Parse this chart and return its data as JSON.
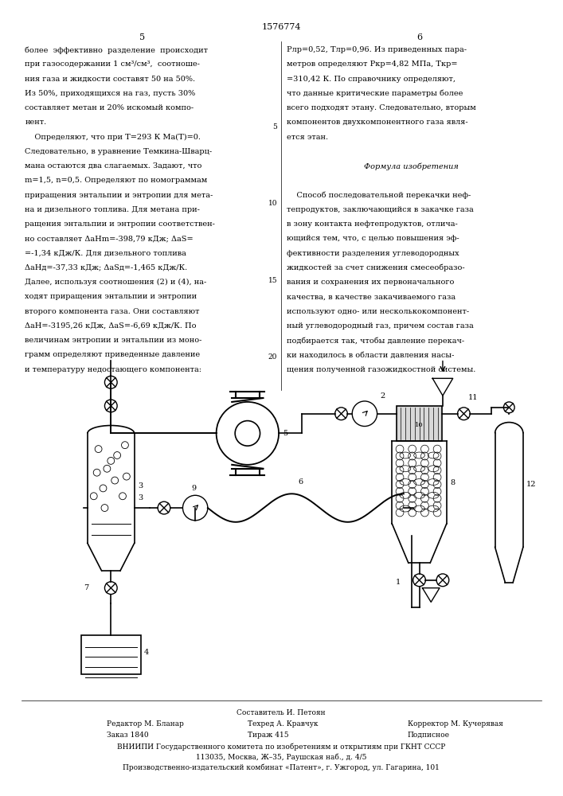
{
  "patent_number": "1576774",
  "page_num_left": "5",
  "page_num_right": "6",
  "line_number_5": "5",
  "line_number_10": "10",
  "line_number_15": "15",
  "line_number_20": "20",
  "col1_lines": [
    "более  эффективно  разделение  происходит",
    "при газосодержании 1 см³/см³,  соотноше-",
    "ния газа и жидкости составят 50 на 50%.",
    "Из 50%, приходящихся на газ, пусть 30%",
    "составляет метан и 20% искомый компо-",
    "нент.",
    "    Определяют, что при T=293 К Mа(T)=0.",
    "Следовательно, в уравнение Темкина-Шварц-",
    "мана остаются два слагаемых. Задают, что",
    "m=1,5, n=0,5. Определяют по номограммам",
    "приращения энтальпии и энтропии для мета-",
    "на и дизельного топлива. Для метана при-",
    "ращения энтальпии и энтропии соответствен-",
    "но составляет ΔаHm=-398,79 кДж; ΔаS=",
    "=-1,34 кДж/К. Для дизельного топлива",
    "ΔаHд=-37,33 кДж; ΔаSд=-1,465 кДж/К.",
    "Далее, используя соотношения (2) и (4), на-",
    "ходят приращения энтальпии и энтропии",
    "второго компонента газа. Они составляют",
    "ΔаH=-3195,26 кДж, ΔаS=-6,69 кДж/К. По",
    "величинам энтропии и энтальпии из моно-",
    "грамм определяют приведенные давление",
    "и температуру недостающего компонента:"
  ],
  "col2_lines": [
    "Pлр=0,52, Tлр=0,96. Из приведенных пара-",
    "метров определяют Pкр=4,82 МПа, Tкр=",
    "=310,42 К. По справочнику определяют,",
    "что данные критические параметры более",
    "всего подходят этану. Следовательно, вторым",
    "компонентов двухкомпонентного газа явля-",
    "ется этан.",
    "",
    "Формула изобретения",
    "",
    "    Способ последовательной перекачки неф-",
    "тепродуктов, заключающийся в закачке газа",
    "в зону контакта нефтепродуктов, отлича-",
    "ющийся тем, что, с целью повышения эф-",
    "фективности разделения углеводородных",
    "жидкостей за счет снижения смесеобразо-",
    "вания и сохранения их первоначального",
    "качества, в качестве закачиваемого газа",
    "используют одно- или несколькокомпонент-",
    "ный углеводородный газ, причем состав газа",
    "подбирается так, чтобы давление перекач-",
    "ки находилось в области давления насы-",
    "щения полученной газожидкостной системы."
  ],
  "footer_composer": "Составитель И. Петоян",
  "footer_editor": "Редактор М. Бланар",
  "footer_techred": "Техред А. Кравчук",
  "footer_corrector": "Корректор М. Кучерявая",
  "footer_order": "Заказ 1840",
  "footer_tirazh": "Тираж 415",
  "footer_podpisnoe": "Подписное",
  "footer_vniiipi": "ВНИИПИ Государственного комитета по изобретениям и открытиям при ГКНТ СССР",
  "footer_address": "113035, Москва, Ж–35, Раушская наб., д. 4/5",
  "footer_factory": "Производственно-издательский комбинат «Патент», г. Ужгород, ул. Гагарина, 101",
  "bg_color": "#ffffff",
  "text_color": "#000000"
}
